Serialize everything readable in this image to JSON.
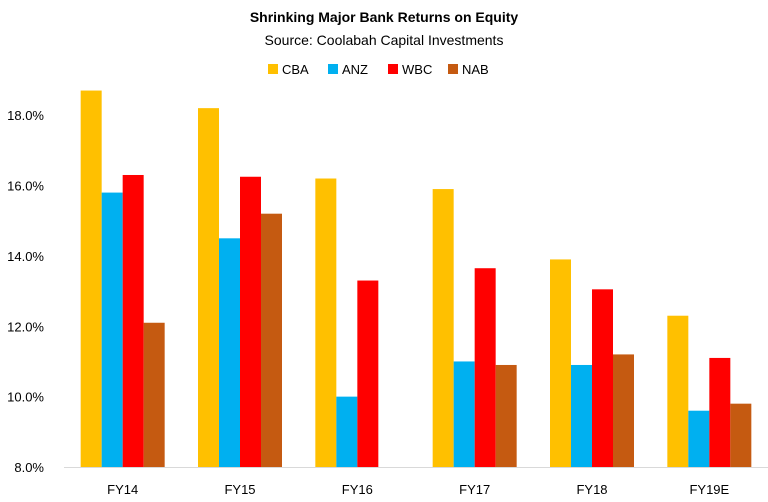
{
  "chart_data": {
    "type": "bar",
    "title": "Shrinking  Major Bank Returns on Equity",
    "subtitle": "Source: Coolabah Capital Investments",
    "categories": [
      "FY14",
      "FY15",
      "FY16",
      "FY17",
      "FY18",
      "FY19E"
    ],
    "series": [
      {
        "name": "CBA",
        "color": "#FFC000",
        "values": [
          18.7,
          18.2,
          16.2,
          15.9,
          13.9,
          12.3
        ]
      },
      {
        "name": "ANZ",
        "color": "#00B0F0",
        "values": [
          15.8,
          14.5,
          10.0,
          11.0,
          10.9,
          9.6
        ]
      },
      {
        "name": "WBC",
        "color": "#FF0000",
        "values": [
          16.3,
          16.25,
          13.3,
          13.65,
          13.05,
          11.1
        ]
      },
      {
        "name": "NAB",
        "color": "#C55A11",
        "values": [
          12.1,
          15.2,
          null,
          10.9,
          11.2,
          9.8
        ]
      }
    ],
    "ylim": [
      8,
      19
    ],
    "yticks": [
      "8.0%",
      "10.0%",
      "12.0%",
      "14.0%",
      "16.0%",
      "18.0%"
    ],
    "xlabel": "",
    "ylabel": "",
    "legend": "top-center",
    "grid": false
  }
}
